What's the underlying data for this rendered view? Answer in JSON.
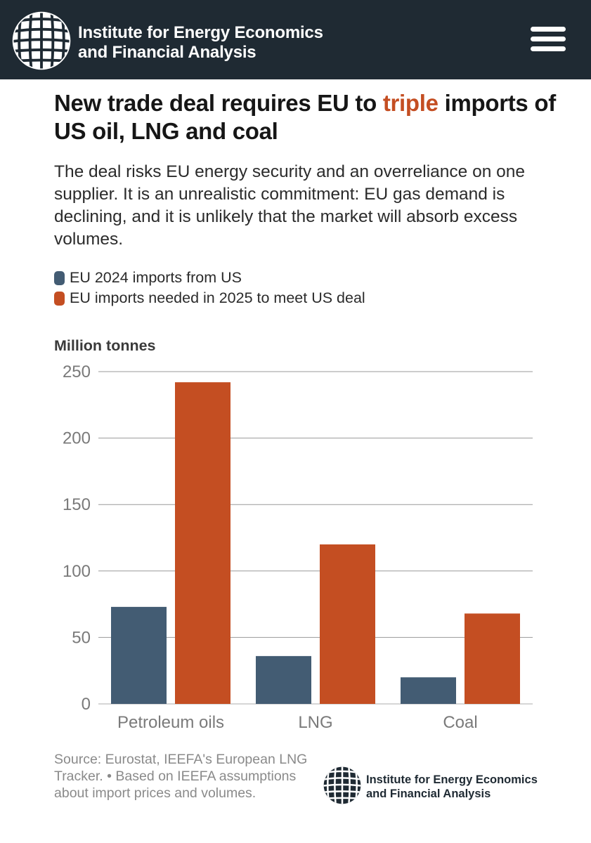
{
  "header": {
    "org_line1": "Institute for Energy Economics",
    "org_line2": "and Financial Analysis",
    "logo_icon": "globe-grid-icon",
    "menu_icon": "hamburger-menu-icon"
  },
  "title": {
    "before": "New trade deal requires EU to ",
    "highlight": "triple",
    "after": " imports of US oil, LNG and coal"
  },
  "subtitle": "The deal risks EU energy security and an overreliance on one supplier. It is an unrealistic commitment: EU gas demand is declining, and it is unlikely that the market will absorb excess volumes.",
  "colors": {
    "header_bg": "#1f2a33",
    "series_2024": "#435c73",
    "series_2025": "#c44e22",
    "accent": "#c44e22"
  },
  "footer": {
    "source": "Source: Eurostat, IEEFA's European LNG Tracker. • Based on IEEFA assumptions about import prices and volumes.",
    "org_line1": "Institute for Energy Economics",
    "org_line2": "and Financial Analysis"
  },
  "chart_data": {
    "type": "bar",
    "title": "New trade deal requires EU to triple imports of US oil, LNG and coal",
    "xlabel": "",
    "ylabel": "Million tonnes",
    "categories": [
      "Petroleum oils",
      "LNG",
      "Coal"
    ],
    "series": [
      {
        "name": "EU 2024 imports from US",
        "color": "#435c73",
        "values": [
          73,
          36,
          20
        ]
      },
      {
        "name": "EU imports needed in 2025 to meet US deal",
        "color": "#c44e22",
        "values": [
          242,
          120,
          68
        ]
      }
    ],
    "ylim": [
      0,
      250
    ],
    "yticks": [
      0,
      50,
      100,
      150,
      200,
      250
    ],
    "grid": true,
    "legend": "top-left"
  }
}
